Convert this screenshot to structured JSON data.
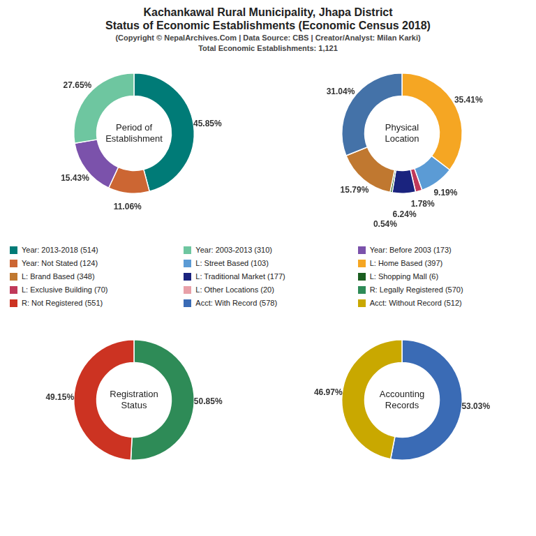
{
  "title": "Kachankawal Rural Municipality, Jhapa District\nStatus of Economic Establishments (Economic Census 2018)",
  "subtitle": "(Copyright © NepalArchives.Com | Data Source: CBS | Creator/Analyst: Milan Karki)\nTotal Economic Establishments: 1,121",
  "legend_items": [
    {
      "label": "Year: 2013-2018 (514)",
      "color": "#007B77"
    },
    {
      "label": "Year: Not Stated (124)",
      "color": "#CC6633"
    },
    {
      "label": "L: Brand Based (348)",
      "color": "#C07830"
    },
    {
      "label": "L: Exclusive Building (70)",
      "color": "#C0395A"
    },
    {
      "label": "R: Not Registered (551)",
      "color": "#CC3322"
    },
    {
      "label": "Year: 2003-2013 (310)",
      "color": "#6EC6A0"
    },
    {
      "label": "L: Street Based (103)",
      "color": "#5B9BD5"
    },
    {
      "label": "L: Traditional Market (177)",
      "color": "#1A237E"
    },
    {
      "label": "L: Other Locations (20)",
      "color": "#E8A0A8"
    },
    {
      "label": "Acct: With Record (578)",
      "color": "#3A6BB5"
    },
    {
      "label": "Year: Before 2003 (173)",
      "color": "#7B52AB"
    },
    {
      "label": "L: Home Based (397)",
      "color": "#F5A623"
    },
    {
      "label": "L: Shopping Mall (6)",
      "color": "#1B5E20"
    },
    {
      "label": "R: Legally Registered (570)",
      "color": "#2E8B57"
    },
    {
      "label": "Acct: Without Record (512)",
      "color": "#C9A800"
    }
  ],
  "chart_data": [
    {
      "type": "doughnut",
      "title": "Period of\nEstablishment",
      "values": [
        45.85,
        11.06,
        15.43,
        27.65
      ],
      "colors": [
        "#007B77",
        "#CC6633",
        "#7B52AB",
        "#6EC6A0"
      ],
      "value_labels": [
        "45.85%",
        "11.06%",
        "15.43%",
        "27.65%"
      ],
      "data_labels": true
    },
    {
      "type": "doughnut",
      "title": "Physical\nLocation",
      "values": [
        35.41,
        9.19,
        1.78,
        6.24,
        0.54,
        15.79,
        31.04
      ],
      "colors": [
        "#F5A623",
        "#5B9BD5",
        "#C0395A",
        "#1A237E",
        "#1B5E20",
        "#C07830",
        "#4472A8"
      ],
      "value_labels": [
        "35.41%",
        "9.19%",
        "1.78%",
        "6.24%",
        "0.54%",
        "15.79%",
        "31.04%"
      ],
      "data_labels": true
    },
    {
      "type": "doughnut",
      "title": "Registration\nStatus",
      "values": [
        50.85,
        49.15
      ],
      "colors": [
        "#2E8B57",
        "#CC3322"
      ],
      "value_labels": [
        "50.85%",
        "49.15%"
      ],
      "data_labels": true
    },
    {
      "type": "doughnut",
      "title": "Accounting\nRecords",
      "values": [
        53.03,
        46.97
      ],
      "colors": [
        "#3A6BB5",
        "#C9A800"
      ],
      "value_labels": [
        "53.03%",
        "46.97%"
      ],
      "data_labels": true
    }
  ]
}
